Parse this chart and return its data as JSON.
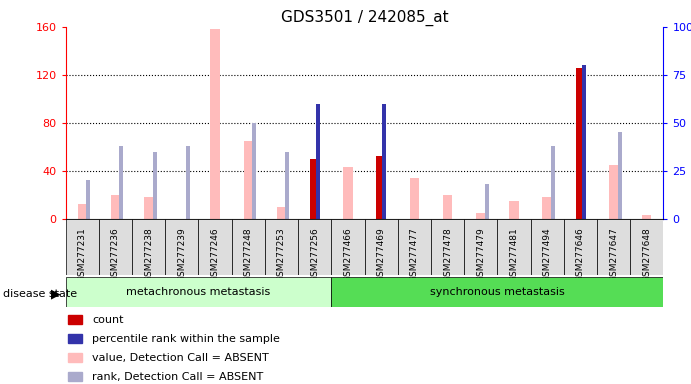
{
  "title": "GDS3501 / 242085_at",
  "samples": [
    "GSM277231",
    "GSM277236",
    "GSM277238",
    "GSM277239",
    "GSM277246",
    "GSM277248",
    "GSM277253",
    "GSM277256",
    "GSM277466",
    "GSM277469",
    "GSM277477",
    "GSM277478",
    "GSM277479",
    "GSM277481",
    "GSM277494",
    "GSM277646",
    "GSM277647",
    "GSM277648"
  ],
  "count_values": [
    0,
    0,
    0,
    0,
    0,
    0,
    0,
    50,
    0,
    52,
    0,
    0,
    0,
    0,
    0,
    126,
    0,
    0
  ],
  "percentile_values": [
    0,
    0,
    0,
    0,
    0,
    0,
    0,
    60,
    0,
    60,
    0,
    0,
    0,
    0,
    0,
    80,
    0,
    0
  ],
  "absent_value": [
    12,
    20,
    18,
    0,
    158,
    65,
    10,
    50,
    43,
    50,
    34,
    20,
    5,
    15,
    18,
    0,
    45,
    3
  ],
  "absent_rank": [
    20,
    38,
    35,
    38,
    0,
    50,
    35,
    0,
    0,
    0,
    0,
    0,
    18,
    0,
    38,
    0,
    45,
    0
  ],
  "group1_label": "metachronous metastasis",
  "group2_label": "synchronous metastasis",
  "group1_count": 8,
  "group2_count": 10,
  "ylim_left": [
    0,
    160
  ],
  "ylim_right": [
    0,
    100
  ],
  "yticks_left": [
    0,
    40,
    80,
    120,
    160
  ],
  "yticks_right": [
    0,
    25,
    50,
    75,
    100
  ],
  "yticklabels_right": [
    "0",
    "25",
    "50",
    "75",
    "100%"
  ],
  "color_count": "#cc0000",
  "color_percentile": "#3333aa",
  "color_absent_value": "#ffbbbb",
  "color_absent_rank": "#aaaacc",
  "color_group1_bg": "#ccffcc",
  "color_group2_bg": "#55dd55",
  "color_sample_bg": "#dddddd",
  "title_fontsize": 11
}
